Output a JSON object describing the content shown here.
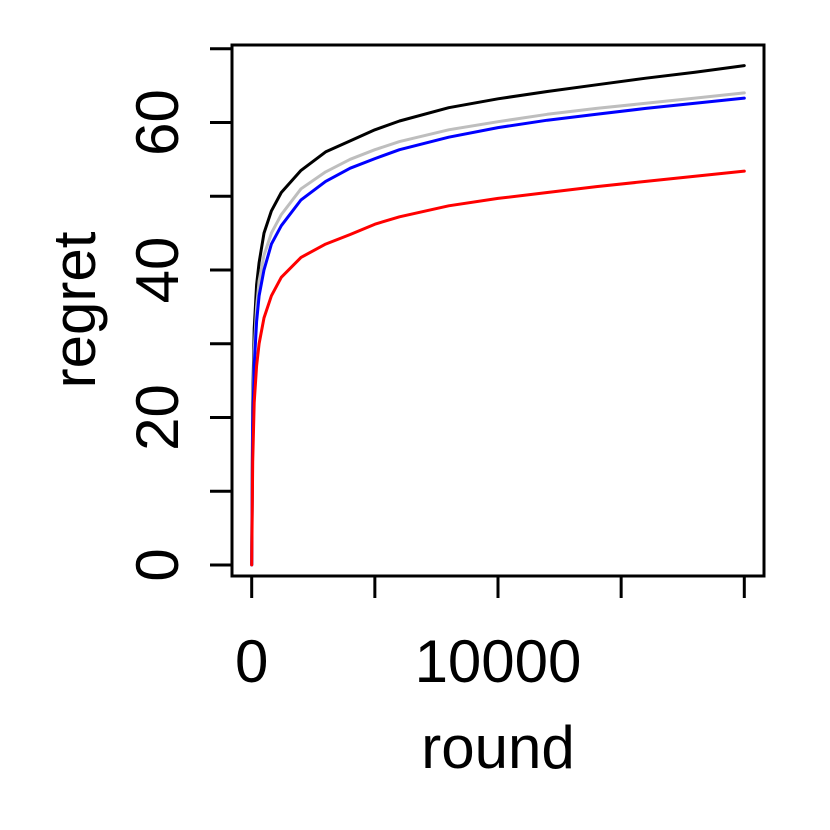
{
  "chart_data": {
    "type": "line",
    "xlabel": "round",
    "ylabel": "regret",
    "xlim": [
      -800,
      20800
    ],
    "ylim": [
      -1.5,
      70.5
    ],
    "x_ticks": [
      0,
      5000,
      10000,
      15000,
      20000
    ],
    "x_tick_labels": [
      "0",
      "",
      "10000",
      "",
      ""
    ],
    "y_ticks": [
      0,
      10,
      20,
      30,
      40,
      50,
      60,
      70
    ],
    "y_tick_labels": [
      "0",
      "",
      "20",
      "",
      "40",
      "",
      "60",
      ""
    ],
    "grid": false,
    "series": [
      {
        "color": "#000000",
        "points": [
          [
            0,
            0
          ],
          [
            40,
            22
          ],
          [
            100,
            32
          ],
          [
            200,
            38
          ],
          [
            300,
            41
          ],
          [
            500,
            45
          ],
          [
            800,
            48
          ],
          [
            1200,
            50.5
          ],
          [
            2000,
            53.5
          ],
          [
            3000,
            56
          ],
          [
            4000,
            57.5
          ],
          [
            5000,
            59
          ],
          [
            6000,
            60.2
          ],
          [
            8000,
            62
          ],
          [
            10000,
            63.2
          ],
          [
            12000,
            64.2
          ],
          [
            14000,
            65.1
          ],
          [
            16000,
            66
          ],
          [
            18000,
            66.8
          ],
          [
            20000,
            67.7
          ]
        ]
      },
      {
        "color": "#bebebe",
        "points": [
          [
            0,
            0
          ],
          [
            40,
            20
          ],
          [
            100,
            29
          ],
          [
            200,
            35
          ],
          [
            300,
            38.5
          ],
          [
            500,
            42
          ],
          [
            800,
            45
          ],
          [
            1200,
            47.5
          ],
          [
            2000,
            51
          ],
          [
            3000,
            53.3
          ],
          [
            4000,
            55
          ],
          [
            5000,
            56.3
          ],
          [
            6000,
            57.4
          ],
          [
            8000,
            59
          ],
          [
            10000,
            60.1
          ],
          [
            12000,
            61.1
          ],
          [
            14000,
            61.9
          ],
          [
            16000,
            62.6
          ],
          [
            18000,
            63.3
          ],
          [
            20000,
            64
          ]
        ]
      },
      {
        "color": "#0000ff",
        "points": [
          [
            0,
            0
          ],
          [
            40,
            19
          ],
          [
            100,
            27
          ],
          [
            200,
            33
          ],
          [
            300,
            36.5
          ],
          [
            500,
            40
          ],
          [
            800,
            43.5
          ],
          [
            1200,
            46
          ],
          [
            2000,
            49.5
          ],
          [
            3000,
            52
          ],
          [
            4000,
            53.8
          ],
          [
            5000,
            55.1
          ],
          [
            6000,
            56.3
          ],
          [
            8000,
            58
          ],
          [
            10000,
            59.3
          ],
          [
            12000,
            60.3
          ],
          [
            14000,
            61.1
          ],
          [
            16000,
            61.9
          ],
          [
            18000,
            62.6
          ],
          [
            20000,
            63.3
          ]
        ]
      },
      {
        "color": "#ff0000",
        "points": [
          [
            0,
            0
          ],
          [
            40,
            14
          ],
          [
            100,
            22
          ],
          [
            200,
            27
          ],
          [
            300,
            30
          ],
          [
            500,
            33.5
          ],
          [
            800,
            36.5
          ],
          [
            1200,
            39
          ],
          [
            2000,
            41.7
          ],
          [
            3000,
            43.5
          ],
          [
            4000,
            44.8
          ],
          [
            5000,
            46.2
          ],
          [
            6000,
            47.2
          ],
          [
            8000,
            48.7
          ],
          [
            10000,
            49.7
          ],
          [
            12000,
            50.5
          ],
          [
            14000,
            51.3
          ],
          [
            16000,
            52
          ],
          [
            18000,
            52.7
          ],
          [
            20000,
            53.4
          ]
        ]
      }
    ]
  }
}
